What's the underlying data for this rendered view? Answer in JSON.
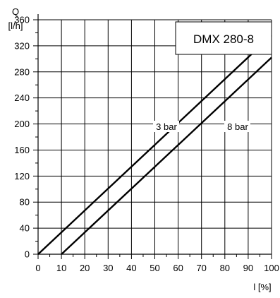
{
  "chart_data": {
    "type": "line",
    "title": "DMX 280-8",
    "y_axis": {
      "symbol": "Q",
      "unit": "[l/h]"
    },
    "x_axis": {
      "symbol": "l [%]"
    },
    "xlim": [
      0,
      100
    ],
    "ylim": [
      0,
      360
    ],
    "x_ticks": [
      0,
      10,
      20,
      30,
      40,
      50,
      60,
      70,
      80,
      90,
      100
    ],
    "y_ticks": [
      0,
      40,
      80,
      120,
      160,
      200,
      240,
      280,
      320,
      360
    ],
    "grid": true,
    "series": [
      {
        "name": "3 bar",
        "points": [
          [
            0,
            0
          ],
          [
            100,
            336
          ]
        ]
      },
      {
        "name": "8 bar",
        "points": [
          [
            10,
            0
          ],
          [
            100,
            302
          ]
        ]
      }
    ],
    "annotations": [
      {
        "text": "3 bar",
        "series": "3 bar"
      },
      {
        "text": "8 bar",
        "series": "8 bar"
      }
    ]
  }
}
